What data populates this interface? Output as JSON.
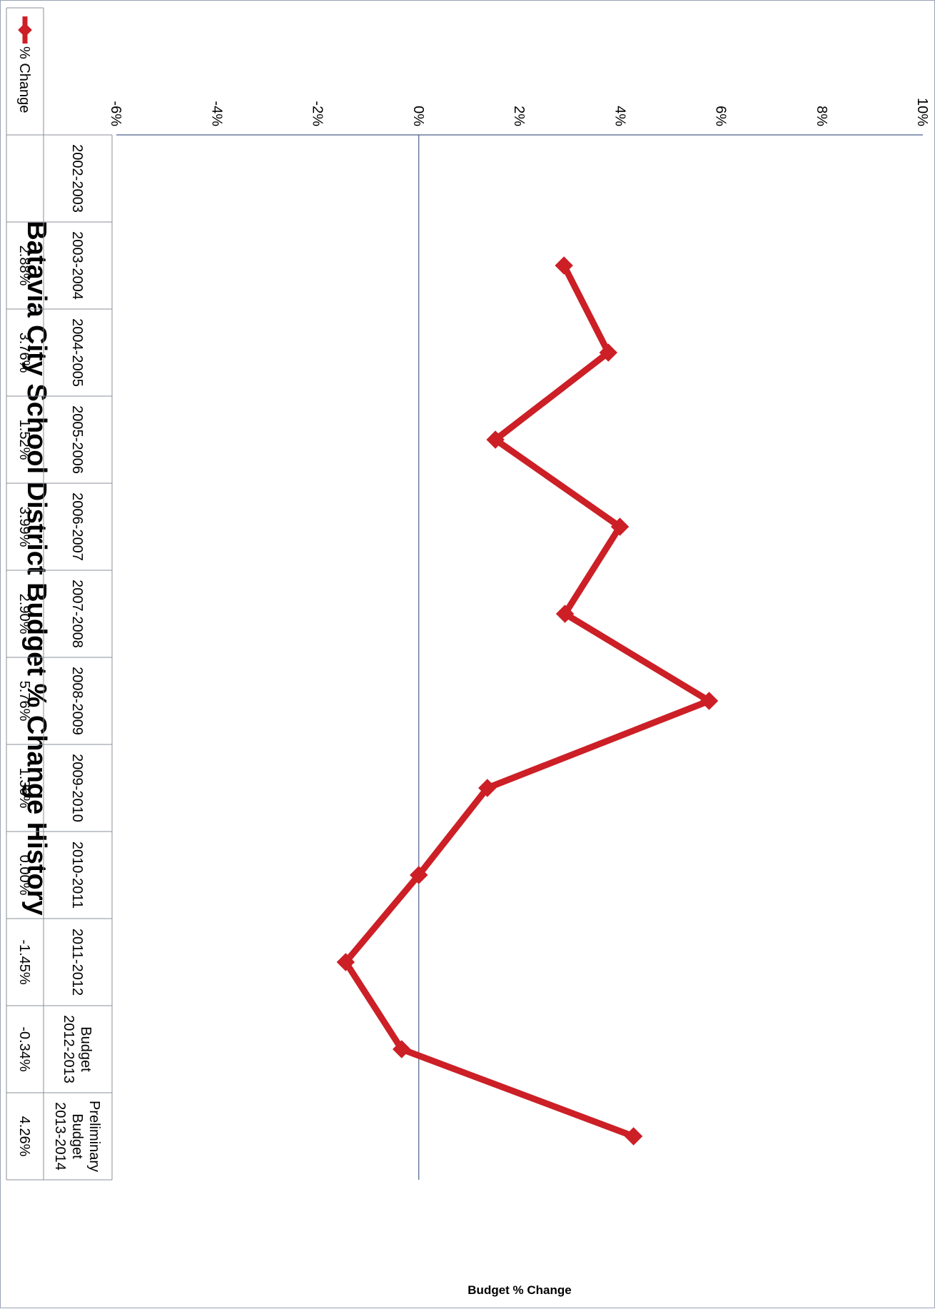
{
  "chart_data": {
    "type": "line",
    "title": "Batavia City School District Budget % Change History",
    "ylabel": "Budget % Change",
    "xlabel": "",
    "ylim": [
      -6,
      10
    ],
    "yticks": [
      "10%",
      "8%",
      "6%",
      "4%",
      "2%",
      "0%",
      "-2%",
      "-4%",
      "-6%"
    ],
    "categories": [
      "2002-2003",
      "2003-2004",
      "2004-2005",
      "2005-2006",
      "2006-2007",
      "2007-2008",
      "2008-2009",
      "2009-2010",
      "2010-2011",
      "2011-2012",
      "Budget 2012-2013",
      "Preliminary Budget 2013-2014"
    ],
    "series": [
      {
        "name": "% Change",
        "color": "#cc1f26",
        "values": [
          null,
          2.88,
          3.76,
          1.52,
          3.99,
          2.9,
          5.76,
          1.36,
          0.0,
          -1.45,
          -0.34,
          4.26
        ],
        "labels": [
          "",
          "2.88%",
          "3.76%",
          "1.52%",
          "3.99%",
          "2.90%",
          "5.76%",
          "1.36%",
          "0.00%",
          "-1.45%",
          "-0.34%",
          "4.26%"
        ]
      }
    ],
    "grid": false,
    "legend": "bottom-left"
  }
}
